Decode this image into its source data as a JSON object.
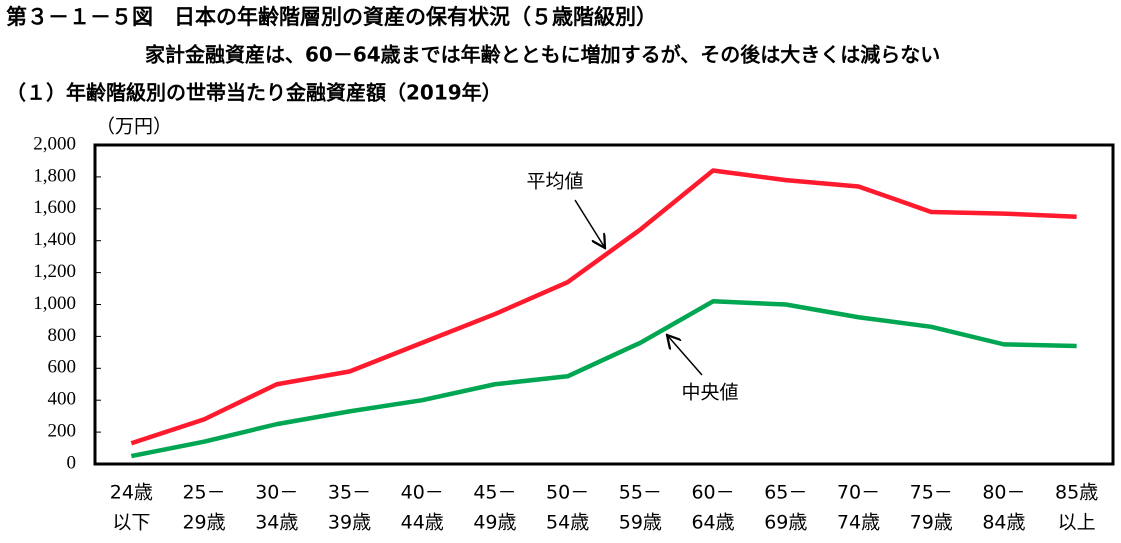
{
  "chart_data": {
    "type": "line",
    "figure_label": "第３－１－５図　日本の年齢階層別の資産の保有状況（５歳階級別）",
    "subtitle": "家計金融資産は、60－64歳までは年齢とともに増加するが、その後は大きくは減らない",
    "title": "（１）年齢階級別の世帯当たり金融資産額（2019年）",
    "y_unit": "（万円）",
    "categories": [
      [
        "24歳",
        "以下"
      ],
      [
        "25－",
        "29歳"
      ],
      [
        "30－",
        "34歳"
      ],
      [
        "35－",
        "39歳"
      ],
      [
        "40－",
        "44歳"
      ],
      [
        "45－",
        "49歳"
      ],
      [
        "50－",
        "54歳"
      ],
      [
        "55－",
        "59歳"
      ],
      [
        "60－",
        "64歳"
      ],
      [
        "65－",
        "69歳"
      ],
      [
        "70－",
        "74歳"
      ],
      [
        "75－",
        "79歳"
      ],
      [
        "80－",
        "84歳"
      ],
      [
        "85歳",
        "以上"
      ]
    ],
    "series": [
      {
        "name": "平均値",
        "color": "#ff1a2e",
        "values": [
          130,
          280,
          500,
          580,
          760,
          940,
          1140,
          1470,
          1840,
          1780,
          1740,
          1580,
          1570,
          1550
        ]
      },
      {
        "name": "中央値",
        "color": "#00a651",
        "values": [
          50,
          140,
          250,
          330,
          400,
          500,
          550,
          760,
          1020,
          1000,
          920,
          860,
          750,
          740
        ]
      }
    ],
    "ylim": [
      0,
      2000
    ],
    "yticks": [
      0,
      200,
      400,
      600,
      800,
      {
        "value": 1000,
        "label": "1,000"
      },
      {
        "value": 1200,
        "label": "1,200"
      },
      {
        "value": 1400,
        "label": "1,400"
      },
      {
        "value": 1600,
        "label": "1,600"
      },
      {
        "value": 1800,
        "label": "1,800"
      },
      {
        "value": 2000,
        "label": "2,000"
      }
    ],
    "grid": false
  }
}
